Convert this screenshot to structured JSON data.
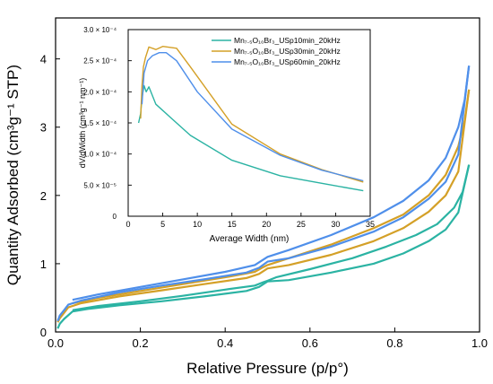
{
  "colors": {
    "USp10min": "#2BB3A3",
    "USp30min": "#D4A027",
    "USp60min": "#4F8FEA"
  },
  "chart_data": [
    {
      "id": "main",
      "type": "line",
      "xlabel": "Relative Pressure (p/p°)",
      "ylabel": "Quantity Adsorbed (cm³g⁻¹ STP)",
      "xlim": [
        0,
        1.0
      ],
      "ylim": [
        0,
        4.6
      ],
      "xticks": [
        "0.0",
        "0.2",
        "0.4",
        "0.6",
        "0.8",
        "1.0"
      ],
      "yticks": [
        "0",
        "1",
        "2",
        "3",
        "4"
      ],
      "series": [
        {
          "key": "USp10min",
          "adsorption": [
            [
              0.005,
              0.05
            ],
            [
              0.01,
              0.12
            ],
            [
              0.02,
              0.19
            ],
            [
              0.04,
              0.3
            ],
            [
              0.08,
              0.34
            ],
            [
              0.15,
              0.39
            ],
            [
              0.25,
              0.45
            ],
            [
              0.35,
              0.52
            ],
            [
              0.45,
              0.6
            ],
            [
              0.48,
              0.66
            ],
            [
              0.5,
              0.74
            ],
            [
              0.55,
              0.76
            ],
            [
              0.65,
              0.87
            ],
            [
              0.75,
              1.0
            ],
            [
              0.82,
              1.15
            ],
            [
              0.88,
              1.33
            ],
            [
              0.92,
              1.5
            ],
            [
              0.95,
              1.75
            ],
            [
              0.975,
              2.45
            ]
          ],
          "desorption": [
            [
              0.975,
              2.45
            ],
            [
              0.96,
              2.05
            ],
            [
              0.94,
              1.82
            ],
            [
              0.9,
              1.58
            ],
            [
              0.85,
              1.42
            ],
            [
              0.78,
              1.25
            ],
            [
              0.7,
              1.08
            ],
            [
              0.6,
              0.92
            ],
            [
              0.52,
              0.8
            ],
            [
              0.5,
              0.75
            ],
            [
              0.49,
              0.73
            ],
            [
              0.47,
              0.68
            ],
            [
              0.4,
              0.62
            ],
            [
              0.3,
              0.53
            ],
            [
              0.2,
              0.45
            ],
            [
              0.1,
              0.38
            ],
            [
              0.04,
              0.32
            ]
          ]
        },
        {
          "key": "USp30min",
          "adsorption": [
            [
              0.005,
              0.14
            ],
            [
              0.01,
              0.2
            ],
            [
              0.02,
              0.28
            ],
            [
              0.03,
              0.36
            ],
            [
              0.06,
              0.42
            ],
            [
              0.15,
              0.52
            ],
            [
              0.25,
              0.61
            ],
            [
              0.35,
              0.7
            ],
            [
              0.45,
              0.79
            ],
            [
              0.48,
              0.85
            ],
            [
              0.5,
              0.93
            ],
            [
              0.55,
              0.98
            ],
            [
              0.65,
              1.13
            ],
            [
              0.75,
              1.33
            ],
            [
              0.82,
              1.52
            ],
            [
              0.88,
              1.76
            ],
            [
              0.92,
              2.0
            ],
            [
              0.95,
              2.35
            ],
            [
              0.975,
              3.55
            ]
          ],
          "desorption": [
            [
              0.975,
              3.55
            ],
            [
              0.965,
              3.1
            ],
            [
              0.95,
              2.72
            ],
            [
              0.92,
              2.3
            ],
            [
              0.88,
              2.0
            ],
            [
              0.82,
              1.72
            ],
            [
              0.75,
              1.52
            ],
            [
              0.65,
              1.28
            ],
            [
              0.55,
              1.08
            ],
            [
              0.5,
              0.98
            ],
            [
              0.49,
              0.95
            ],
            [
              0.47,
              0.88
            ],
            [
              0.4,
              0.8
            ],
            [
              0.3,
              0.7
            ],
            [
              0.2,
              0.6
            ],
            [
              0.1,
              0.5
            ],
            [
              0.04,
              0.42
            ]
          ]
        },
        {
          "key": "USp60min",
          "adsorption": [
            [
              0.005,
              0.16
            ],
            [
              0.01,
              0.24
            ],
            [
              0.02,
              0.32
            ],
            [
              0.03,
              0.4
            ],
            [
              0.06,
              0.46
            ],
            [
              0.15,
              0.58
            ],
            [
              0.25,
              0.68
            ],
            [
              0.35,
              0.77
            ],
            [
              0.45,
              0.87
            ],
            [
              0.48,
              0.94
            ],
            [
              0.5,
              1.03
            ],
            [
              0.55,
              1.08
            ],
            [
              0.65,
              1.25
            ],
            [
              0.75,
              1.47
            ],
            [
              0.82,
              1.68
            ],
            [
              0.88,
              1.95
            ],
            [
              0.92,
              2.2
            ],
            [
              0.95,
              2.6
            ],
            [
              0.975,
              3.9
            ]
          ],
          "desorption": [
            [
              0.975,
              3.9
            ],
            [
              0.965,
              3.4
            ],
            [
              0.95,
              3.0
            ],
            [
              0.92,
              2.55
            ],
            [
              0.88,
              2.22
            ],
            [
              0.82,
              1.92
            ],
            [
              0.75,
              1.68
            ],
            [
              0.65,
              1.42
            ],
            [
              0.55,
              1.2
            ],
            [
              0.5,
              1.1
            ],
            [
              0.49,
              1.06
            ],
            [
              0.47,
              0.98
            ],
            [
              0.4,
              0.88
            ],
            [
              0.3,
              0.77
            ],
            [
              0.2,
              0.66
            ],
            [
              0.1,
              0.55
            ],
            [
              0.04,
              0.47
            ]
          ]
        }
      ]
    },
    {
      "id": "inset",
      "type": "line",
      "xlabel": "Average Width (nm)",
      "ylabel": "dV/dWidth (cm³g⁻¹ nm⁻¹)",
      "xlim": [
        0,
        35
      ],
      "ylim": [
        0,
        0.0003
      ],
      "xticks": [
        "0",
        "5",
        "10",
        "15",
        "20",
        "25",
        "30",
        "35"
      ],
      "yticks": [
        "0",
        "5.0 × 10⁻⁵",
        "1.0 × 10⁻⁴",
        "1.5 × 10⁻⁴",
        "2.0 × 10⁻⁴",
        "2.5 × 10⁻⁴",
        "3.0 × 10⁻⁴"
      ],
      "legend_position": "top-right",
      "series": [
        {
          "key": "USp10min",
          "name": "Mn₇.₅O₁₀Br₃_USp10min_20kHz",
          "points": [
            [
              1.5,
              0.00015
            ],
            [
              1.8,
              0.000165
            ],
            [
              2.0,
              0.00019
            ],
            [
              2.3,
              0.00021
            ],
            [
              2.6,
              0.0002
            ],
            [
              3.0,
              0.000208
            ],
            [
              4.0,
              0.00018
            ],
            [
              6.0,
              0.00016
            ],
            [
              9.0,
              0.00013
            ],
            [
              15.0,
              9e-05
            ],
            [
              22.0,
              6.5e-05
            ],
            [
              28.0,
              5.3e-05
            ],
            [
              34.0,
              4.1e-05
            ]
          ]
        },
        {
          "key": "USp30min",
          "name": "Mn₇.₅O₁₀Br₃_USp30min_20kHz",
          "points": [
            [
              1.8,
              0.000157
            ],
            [
              2.0,
              0.00021
            ],
            [
              2.2,
              0.00024
            ],
            [
              2.5,
              0.000255
            ],
            [
              3.0,
              0.000272
            ],
            [
              4.0,
              0.000268
            ],
            [
              5.0,
              0.000273
            ],
            [
              7.0,
              0.00027
            ],
            [
              9.0,
              0.00024
            ],
            [
              15.0,
              0.000148
            ],
            [
              22.0,
              0.0001
            ],
            [
              28.0,
              7.5e-05
            ],
            [
              34.0,
              5.5e-05
            ]
          ]
        },
        {
          "key": "USp60min",
          "name": "Mn₇.₅O₁₀Br₃_USp60min_20kHz",
          "points": [
            [
              2.0,
              0.00018
            ],
            [
              2.3,
              0.00023
            ],
            [
              2.8,
              0.00025
            ],
            [
              3.5,
              0.000258
            ],
            [
              4.5,
              0.000263
            ],
            [
              5.5,
              0.000263
            ],
            [
              7.0,
              0.00025
            ],
            [
              10.0,
              0.0002
            ],
            [
              15.0,
              0.00014
            ],
            [
              22.0,
              9.8e-05
            ],
            [
              28.0,
              7.4e-05
            ],
            [
              34.0,
              5.7e-05
            ]
          ]
        }
      ]
    }
  ]
}
